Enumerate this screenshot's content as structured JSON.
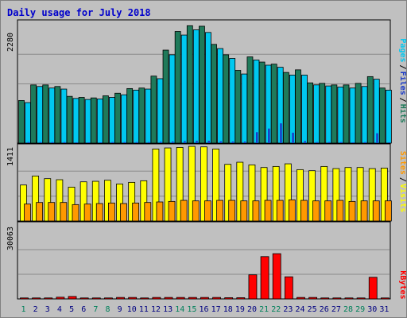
{
  "chart_data": {
    "type": "bar",
    "title": "Daily usage for July 2018",
    "colors": {
      "title": "#0000cc",
      "background": "#c0c0c0",
      "plot_bg": "#c0c0c0",
      "grid": "#8a8a8a",
      "hits": "#1f7a5a",
      "files": "#00c8f0",
      "pages": "#1a3ac8",
      "visits": "#ffff00",
      "sites": "#ff9900",
      "kbytes": "#ff0000",
      "weekend_label": "#00805a",
      "weekday_label": "#000080"
    },
    "categories": [
      "1",
      "2",
      "3",
      "4",
      "5",
      "6",
      "7",
      "8",
      "9",
      "10",
      "11",
      "12",
      "13",
      "14",
      "15",
      "16",
      "17",
      "18",
      "19",
      "20",
      "21",
      "22",
      "23",
      "24",
      "25",
      "26",
      "27",
      "28",
      "29",
      "30",
      "31"
    ],
    "weekend_days": [
      "1",
      "7",
      "8",
      "14",
      "15",
      "21",
      "22",
      "28",
      "29"
    ],
    "panels": [
      {
        "id": "hits-files-pages",
        "ymax": 2280,
        "ytick_label": "2280",
        "legend": [
          "Pages",
          "/",
          "Files",
          "/",
          "Hits"
        ],
        "legend_colors": [
          "#00c8f0",
          "#000000",
          "#1a3ac8",
          "#000000",
          "#1f7a5a"
        ],
        "series": [
          {
            "name": "Hits",
            "values": [
              820,
              1120,
              1120,
              1090,
              900,
              880,
              870,
              910,
              960,
              1050,
              1060,
              1290,
              1790,
              2150,
              2260,
              2250,
              1900,
              1700,
              1400,
              1660,
              1560,
              1520,
              1360,
              1410,
              1160,
              1150,
              1120,
              1120,
              1150,
              1280,
              1060
            ]
          },
          {
            "name": "Files",
            "values": [
              780,
              1090,
              1060,
              1040,
              860,
              840,
              850,
              880,
              930,
              1020,
              1040,
              1240,
              1700,
              2080,
              2180,
              2130,
              1820,
              1630,
              1330,
              1600,
              1500,
              1460,
              1310,
              1310,
              1120,
              1100,
              1080,
              1060,
              1090,
              1230,
              1020
            ]
          },
          {
            "name": "Pages",
            "values": [
              20,
              20,
              20,
              20,
              15,
              15,
              15,
              20,
              20,
              20,
              20,
              25,
              30,
              40,
              45,
              45,
              35,
              30,
              30,
              210,
              280,
              380,
              200,
              40,
              20,
              20,
              20,
              15,
              20,
              190,
              15
            ]
          }
        ]
      },
      {
        "id": "visits-sites",
        "ymax": 1411,
        "ytick_label": "1411",
        "legend": [
          "Sites",
          "/",
          "Visits"
        ],
        "legend_colors": [
          "#ff9900",
          "#000000",
          "#ffff00"
        ],
        "series": [
          {
            "name": "Visits",
            "values": [
              680,
              850,
              800,
              780,
              640,
              740,
              750,
              770,
              700,
              730,
              760,
              1360,
              1380,
              1390,
              1410,
              1400,
              1360,
              1070,
              1110,
              1060,
              1010,
              1030,
              1080,
              970,
              950,
              1030,
              990,
              1010,
              1010,
              990,
              1000
            ]
          },
          {
            "name": "Sites",
            "values": [
              320,
              350,
              350,
              350,
              310,
              320,
              330,
              340,
              330,
              340,
              350,
              360,
              370,
              390,
              380,
              380,
              390,
              390,
              380,
              380,
              390,
              390,
              400,
              390,
              380,
              380,
              390,
              370,
              380,
              380,
              380
            ]
          }
        ]
      },
      {
        "id": "kbytes",
        "ymax": 30063,
        "ytick_label": "30063",
        "legend": [
          "KBytes"
        ],
        "legend_colors": [
          "#ff0000"
        ],
        "series": [
          {
            "name": "KBytes",
            "values": [
              400,
              400,
              400,
              700,
              1000,
              400,
              400,
              400,
              600,
              600,
              400,
              600,
              600,
              600,
              600,
              600,
              600,
              500,
              500,
              9800,
              17200,
              18400,
              9000,
              600,
              600,
              400,
              400,
              400,
              400,
              8800,
              400
            ]
          }
        ]
      }
    ]
  }
}
